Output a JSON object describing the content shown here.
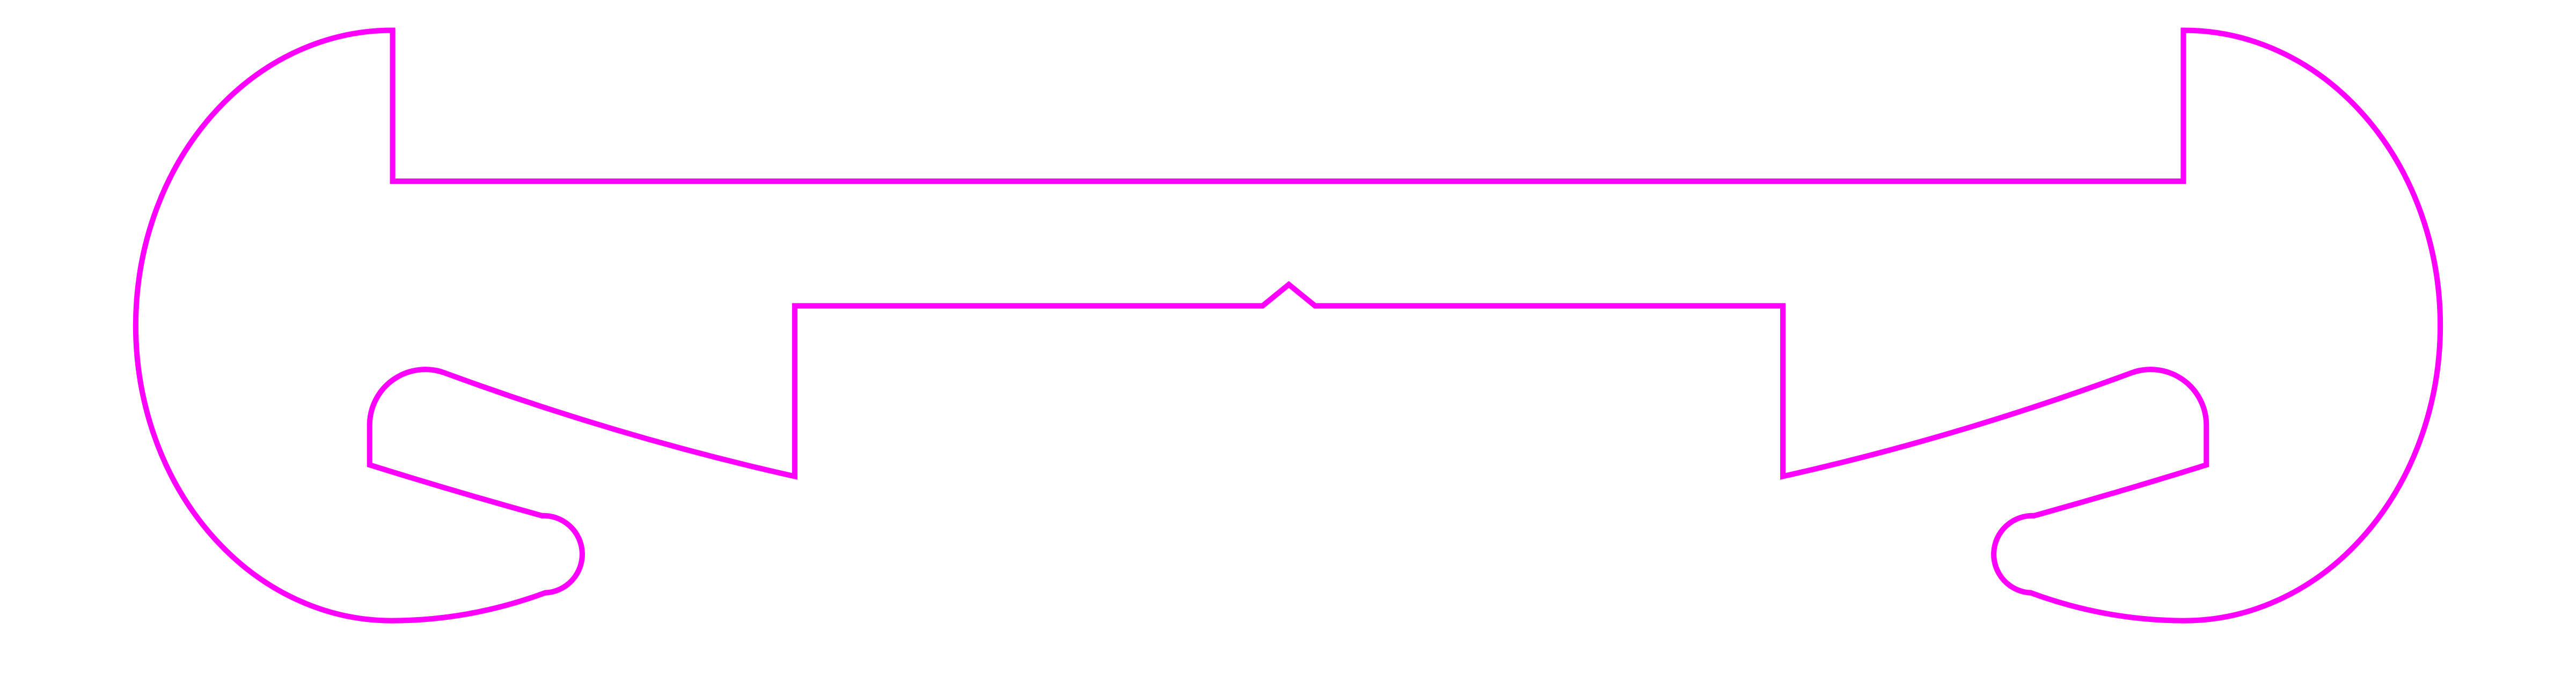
{
  "diagram": {
    "kind": "laser-cut profile outline",
    "stroke_color": "#ff00ff",
    "background_color": "#ffffff",
    "labels": []
  }
}
